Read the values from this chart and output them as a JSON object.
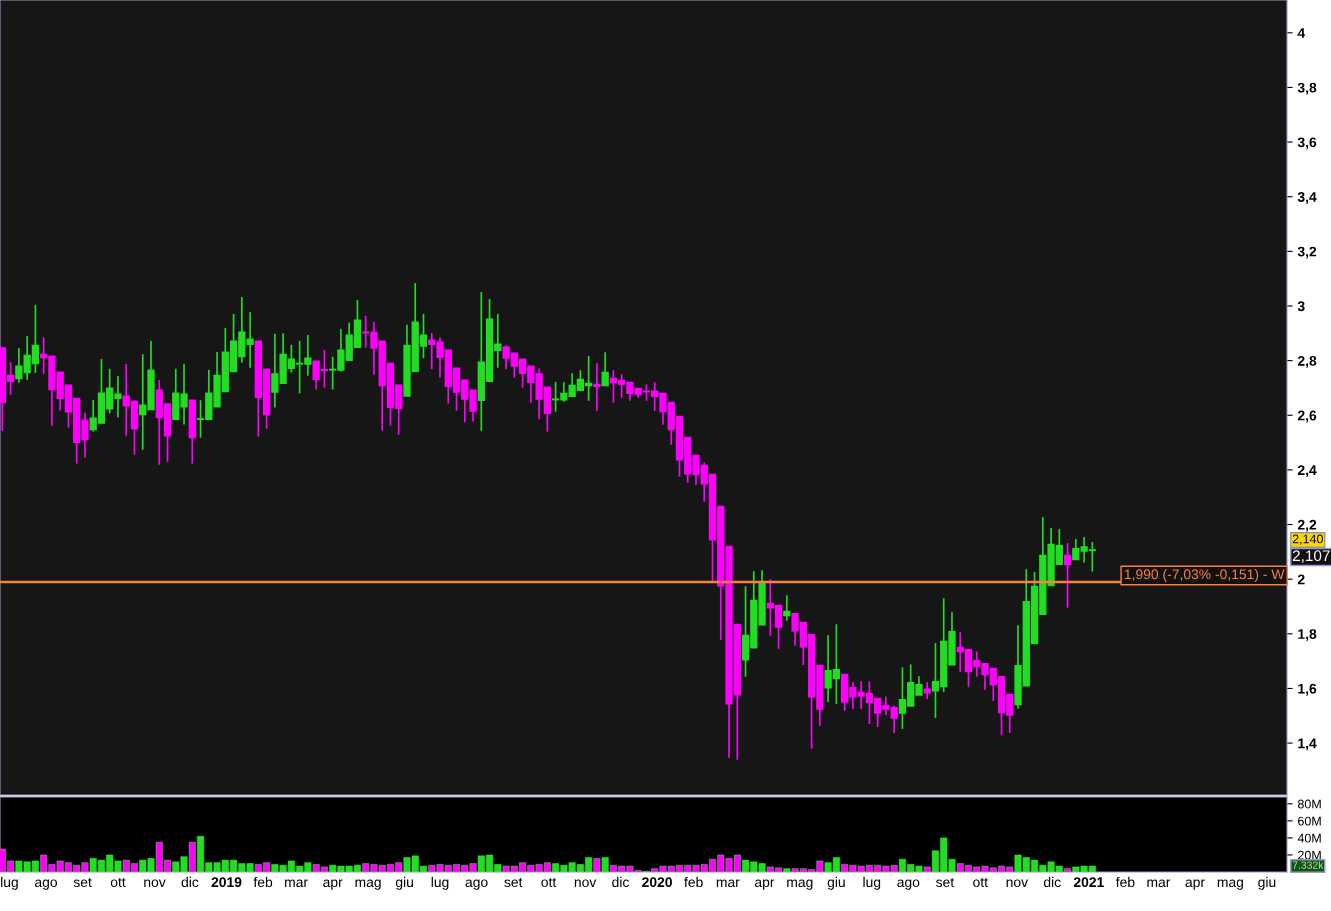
{
  "chart_data": [
    {
      "type": "candlestick",
      "tick_labels": "y",
      "grid": false,
      "legend": false,
      "x": [
        "2018-06-25",
        "2018-07-02",
        "2018-07-09",
        "2018-07-16",
        "2018-07-23",
        "2018-07-30",
        "2018-08-06",
        "2018-08-13",
        "2018-08-20",
        "2018-08-27",
        "2018-09-03",
        "2018-09-10",
        "2018-09-17",
        "2018-09-24",
        "2018-10-01",
        "2018-10-08",
        "2018-10-15",
        "2018-10-22",
        "2018-10-29",
        "2018-11-05",
        "2018-11-12",
        "2018-11-19",
        "2018-11-26",
        "2018-12-03",
        "2018-12-10",
        "2018-12-17",
        "2018-12-24",
        "2018-12-31",
        "2019-01-07",
        "2019-01-14",
        "2019-01-21",
        "2019-01-28",
        "2019-02-04",
        "2019-02-11",
        "2019-02-18",
        "2019-02-25",
        "2019-03-04",
        "2019-03-11",
        "2019-03-18",
        "2019-03-25",
        "2019-04-01",
        "2019-04-08",
        "2019-04-15",
        "2019-04-22",
        "2019-04-29",
        "2019-05-06",
        "2019-05-13",
        "2019-05-20",
        "2019-05-27",
        "2019-06-03",
        "2019-06-10",
        "2019-06-17",
        "2019-06-24",
        "2019-07-01",
        "2019-07-08",
        "2019-07-15",
        "2019-07-22",
        "2019-07-29",
        "2019-08-05",
        "2019-08-12",
        "2019-08-19",
        "2019-08-26",
        "2019-09-02",
        "2019-09-09",
        "2019-09-16",
        "2019-09-23",
        "2019-09-30",
        "2019-10-07",
        "2019-10-14",
        "2019-10-21",
        "2019-10-28",
        "2019-11-04",
        "2019-11-11",
        "2019-11-18",
        "2019-11-25",
        "2019-12-02",
        "2019-12-09",
        "2019-12-16",
        "2019-12-23",
        "2019-12-30",
        "2020-01-06",
        "2020-01-13",
        "2020-01-20",
        "2020-01-27",
        "2020-02-03",
        "2020-02-10",
        "2020-02-17",
        "2020-02-24",
        "2020-03-02",
        "2020-03-09",
        "2020-03-16",
        "2020-03-23",
        "2020-03-30",
        "2020-04-06",
        "2020-04-13",
        "2020-04-20",
        "2020-04-27",
        "2020-05-04",
        "2020-05-11",
        "2020-05-18",
        "2020-05-25",
        "2020-06-01",
        "2020-06-08",
        "2020-06-15",
        "2020-06-22",
        "2020-06-29",
        "2020-07-06",
        "2020-07-13",
        "2020-07-20",
        "2020-07-27",
        "2020-08-03",
        "2020-08-10",
        "2020-08-17",
        "2020-08-24",
        "2020-08-31",
        "2020-09-07",
        "2020-09-14",
        "2020-09-21",
        "2020-09-28",
        "2020-10-05",
        "2020-10-12",
        "2020-10-19",
        "2020-10-26",
        "2020-11-02",
        "2020-11-09",
        "2020-11-16",
        "2020-11-23",
        "2020-11-30",
        "2020-12-07",
        "2020-12-14",
        "2020-12-21",
        "2020-12-28",
        "2021-01-04"
      ],
      "ohlc": [
        [
          2.846,
          2.85,
          2.543,
          2.647
        ],
        [
          2.746,
          2.794,
          2.675,
          2.724
        ],
        [
          2.734,
          2.846,
          2.719,
          2.78
        ],
        [
          2.756,
          2.89,
          2.73,
          2.819
        ],
        [
          2.789,
          3.004,
          2.755,
          2.856
        ],
        [
          2.823,
          2.885,
          2.752,
          2.811
        ],
        [
          2.816,
          2.816,
          2.562,
          2.694
        ],
        [
          2.758,
          2.758,
          2.617,
          2.662
        ],
        [
          2.71,
          2.71,
          2.555,
          2.613
        ],
        [
          2.662,
          2.662,
          2.423,
          2.501
        ],
        [
          2.582,
          2.609,
          2.445,
          2.511
        ],
        [
          2.548,
          2.656,
          2.54,
          2.589
        ],
        [
          2.571,
          2.806,
          2.571,
          2.681
        ],
        [
          2.624,
          2.77,
          2.607,
          2.699
        ],
        [
          2.662,
          2.744,
          2.592,
          2.677
        ],
        [
          2.67,
          2.788,
          2.525,
          2.635
        ],
        [
          2.651,
          2.655,
          2.456,
          2.551
        ],
        [
          2.603,
          2.824,
          2.474,
          2.637
        ],
        [
          2.621,
          2.872,
          2.621,
          2.765
        ],
        [
          2.692,
          2.729,
          2.419,
          2.592
        ],
        [
          2.641,
          2.641,
          2.43,
          2.525
        ],
        [
          2.585,
          2.77,
          2.585,
          2.681
        ],
        [
          2.631,
          2.788,
          2.566,
          2.677
        ],
        [
          2.655,
          2.655,
          2.423,
          2.518
        ],
        [
          2.585,
          2.655,
          2.518,
          2.587
        ],
        [
          2.585,
          2.766,
          2.585,
          2.681
        ],
        [
          2.631,
          2.832,
          2.631,
          2.746
        ],
        [
          2.687,
          2.919,
          2.687,
          2.831
        ],
        [
          2.76,
          2.971,
          2.76,
          2.871
        ],
        [
          2.815,
          3.033,
          2.793,
          2.904
        ],
        [
          2.86,
          2.978,
          2.774,
          2.878
        ],
        [
          2.871,
          2.871,
          2.522,
          2.666
        ],
        [
          2.768,
          2.768,
          2.551,
          2.603
        ],
        [
          2.685,
          2.898,
          2.628,
          2.751
        ],
        [
          2.717,
          2.9,
          2.717,
          2.823
        ],
        [
          2.772,
          2.858,
          2.756,
          2.805
        ],
        [
          2.788,
          2.872,
          2.68,
          2.789
        ],
        [
          2.787,
          2.894,
          2.745,
          2.809
        ],
        [
          2.798,
          2.798,
          2.694,
          2.732
        ],
        [
          2.766,
          2.839,
          2.701,
          2.764
        ],
        [
          2.766,
          2.814,
          2.694,
          2.768
        ],
        [
          2.765,
          2.916,
          2.76,
          2.838
        ],
        [
          2.801,
          2.939,
          2.801,
          2.893
        ],
        [
          2.849,
          3.022,
          2.849,
          2.948
        ],
        [
          2.904,
          2.964,
          2.848,
          2.902
        ],
        [
          2.903,
          2.942,
          2.748,
          2.846
        ],
        [
          2.871,
          2.871,
          2.543,
          2.709
        ],
        [
          2.79,
          2.79,
          2.562,
          2.629
        ],
        [
          2.71,
          2.71,
          2.529,
          2.625
        ],
        [
          2.67,
          2.931,
          2.67,
          2.856
        ],
        [
          2.761,
          3.084,
          2.761,
          2.941
        ],
        [
          2.853,
          2.971,
          2.809,
          2.893
        ],
        [
          2.875,
          2.901,
          2.769,
          2.86
        ],
        [
          2.867,
          2.885,
          2.738,
          2.812
        ],
        [
          2.838,
          2.838,
          2.643,
          2.706
        ],
        [
          2.772,
          2.772,
          2.617,
          2.685
        ],
        [
          2.728,
          2.728,
          2.574,
          2.659
        ],
        [
          2.692,
          2.692,
          2.577,
          2.615
        ],
        [
          2.655,
          3.051,
          2.543,
          2.794
        ],
        [
          2.724,
          3.026,
          2.724,
          2.952
        ],
        [
          2.838,
          2.971,
          2.774,
          2.86
        ],
        [
          2.849,
          2.856,
          2.768,
          2.809
        ],
        [
          2.827,
          2.827,
          2.738,
          2.78
        ],
        [
          2.805,
          2.805,
          2.701,
          2.754
        ],
        [
          2.78,
          2.78,
          2.646,
          2.721
        ],
        [
          2.751,
          2.771,
          2.585,
          2.659
        ],
        [
          2.703,
          2.703,
          2.54,
          2.607
        ],
        [
          2.657,
          2.722,
          2.613,
          2.659
        ],
        [
          2.657,
          2.721,
          2.649,
          2.68
        ],
        [
          2.669,
          2.754,
          2.669,
          2.709
        ],
        [
          2.691,
          2.765,
          2.691,
          2.731
        ],
        [
          2.709,
          2.817,
          2.653,
          2.716
        ],
        [
          2.713,
          2.791,
          2.616,
          2.706
        ],
        [
          2.709,
          2.831,
          2.709,
          2.757
        ],
        [
          2.735,
          2.765,
          2.646,
          2.72
        ],
        [
          2.727,
          2.75,
          2.664,
          2.713
        ],
        [
          2.72,
          2.72,
          2.653,
          2.68
        ],
        [
          2.698,
          2.698,
          2.664,
          2.676
        ],
        [
          2.688,
          2.713,
          2.653,
          2.686
        ],
        [
          2.688,
          2.721,
          2.616,
          2.669
        ],
        [
          2.68,
          2.68,
          2.565,
          2.614
        ],
        [
          2.647,
          2.647,
          2.492,
          2.548
        ],
        [
          2.596,
          2.596,
          2.375,
          2.437
        ],
        [
          2.519,
          2.519,
          2.353,
          2.386
        ],
        [
          2.453,
          2.453,
          2.345,
          2.383
        ],
        [
          2.416,
          2.427,
          2.283,
          2.349
        ],
        [
          2.383,
          2.383,
          1.988,
          2.144
        ],
        [
          2.266,
          2.266,
          1.778,
          1.976
        ],
        [
          2.12,
          2.12,
          1.346,
          1.544
        ],
        [
          1.834,
          1.834,
          1.339,
          1.577
        ],
        [
          1.705,
          1.974,
          1.643,
          1.794
        ],
        [
          1.749,
          2.029,
          1.749,
          1.922
        ],
        [
          1.833,
          2.033,
          1.833,
          1.987
        ],
        [
          1.911,
          2.0,
          1.793,
          1.895
        ],
        [
          1.904,
          1.904,
          1.745,
          1.825
        ],
        [
          1.867,
          1.941,
          1.848,
          1.882
        ],
        [
          1.874,
          1.874,
          1.756,
          1.811
        ],
        [
          1.841,
          1.841,
          1.686,
          1.752
        ],
        [
          1.797,
          1.797,
          1.379,
          1.569
        ],
        [
          1.684,
          1.684,
          1.463,
          1.525
        ],
        [
          1.602,
          1.795,
          1.55,
          1.665
        ],
        [
          1.636,
          1.835,
          1.543,
          1.669
        ],
        [
          1.651,
          1.651,
          1.518,
          1.55
        ],
        [
          1.603,
          1.623,
          1.525,
          1.569
        ],
        [
          1.585,
          1.626,
          1.525,
          1.572
        ],
        [
          1.581,
          1.626,
          1.47,
          1.548
        ],
        [
          1.563,
          1.563,
          1.459,
          1.51
        ],
        [
          1.537,
          1.571,
          1.503,
          1.525
        ],
        [
          1.53,
          1.537,
          1.437,
          1.492
        ],
        [
          1.51,
          1.677,
          1.452,
          1.559
        ],
        [
          1.536,
          1.688,
          1.536,
          1.621
        ],
        [
          1.576,
          1.645,
          1.576,
          1.614
        ],
        [
          1.596,
          1.623,
          1.561,
          1.584
        ],
        [
          1.591,
          1.766,
          1.492,
          1.625
        ],
        [
          1.607,
          1.93,
          1.587,
          1.772
        ],
        [
          1.687,
          1.879,
          1.687,
          1.808
        ],
        [
          1.75,
          1.806,
          1.66,
          1.735
        ],
        [
          1.742,
          1.742,
          1.606,
          1.662
        ],
        [
          1.702,
          1.735,
          1.643,
          1.68
        ],
        [
          1.691,
          1.691,
          1.595,
          1.651
        ],
        [
          1.673,
          1.673,
          1.554,
          1.614
        ],
        [
          1.643,
          1.643,
          1.43,
          1.512
        ],
        [
          1.578,
          1.578,
          1.437,
          1.503
        ],
        [
          1.541,
          1.831,
          1.526,
          1.683
        ],
        [
          1.61,
          2.037,
          1.61,
          1.918
        ],
        [
          1.764,
          2.026,
          1.764,
          1.973
        ],
        [
          1.871,
          2.227,
          1.871,
          2.087
        ],
        [
          1.977,
          2.187,
          1.977,
          2.127
        ],
        [
          2.054,
          2.183,
          2.054,
          2.123
        ],
        [
          2.087,
          2.132,
          1.896,
          2.054
        ],
        [
          2.072,
          2.147,
          2.072,
          2.112
        ],
        [
          2.103,
          2.154,
          2.061,
          2.118
        ],
        [
          2.105,
          2.136,
          2.028,
          2.107
        ]
      ],
      "colors": [
        "#ff00ff",
        "#ff00ff",
        "#22dd22",
        "#22dd22",
        "#22dd22",
        "#ff00ff",
        "#ff00ff",
        "#ff00ff",
        "#ff00ff",
        "#ff00ff",
        "#ff00ff",
        "#22dd22",
        "#22dd22",
        "#22dd22",
        "#22dd22",
        "#ff00ff",
        "#ff00ff",
        "#22dd22",
        "#22dd22",
        "#ff00ff",
        "#ff00ff",
        "#22dd22",
        "#22dd22",
        "#ff00ff",
        "#22dd22",
        "#22dd22",
        "#22dd22",
        "#22dd22",
        "#22dd22",
        "#22dd22",
        "#22dd22",
        "#ff00ff",
        "#ff00ff",
        "#22dd22",
        "#22dd22",
        "#22dd22",
        "#22dd22",
        "#22dd22",
        "#ff00ff",
        "#ff00ff",
        "#22dd22",
        "#22dd22",
        "#22dd22",
        "#22dd22",
        "#ff00ff",
        "#ff00ff",
        "#ff00ff",
        "#ff00ff",
        "#ff00ff",
        "#22dd22",
        "#22dd22",
        "#22dd22",
        "#ff00ff",
        "#ff00ff",
        "#ff00ff",
        "#ff00ff",
        "#ff00ff",
        "#ff00ff",
        "#22dd22",
        "#22dd22",
        "#22dd22",
        "#ff00ff",
        "#ff00ff",
        "#ff00ff",
        "#ff00ff",
        "#ff00ff",
        "#ff00ff",
        "#22dd22",
        "#22dd22",
        "#22dd22",
        "#22dd22",
        "#22dd22",
        "#ff00ff",
        "#22dd22",
        "#ff00ff",
        "#ff00ff",
        "#ff00ff",
        "#ff00ff",
        "#ff00ff",
        "#ff00ff",
        "#ff00ff",
        "#ff00ff",
        "#ff00ff",
        "#ff00ff",
        "#ff00ff",
        "#ff00ff",
        "#ff00ff",
        "#ff00ff",
        "#ff00ff",
        "#ff00ff",
        "#22dd22",
        "#22dd22",
        "#22dd22",
        "#ff00ff",
        "#ff00ff",
        "#22dd22",
        "#ff00ff",
        "#ff00ff",
        "#ff00ff",
        "#ff00ff",
        "#22dd22",
        "#22dd22",
        "#ff00ff",
        "#ff00ff",
        "#ff00ff",
        "#ff00ff",
        "#ff00ff",
        "#ff00ff",
        "#ff00ff",
        "#22dd22",
        "#22dd22",
        "#22dd22",
        "#ff00ff",
        "#22dd22",
        "#22dd22",
        "#22dd22",
        "#ff00ff",
        "#ff00ff",
        "#ff00ff",
        "#ff00ff",
        "#ff00ff",
        "#ff00ff",
        "#ff00ff",
        "#22dd22",
        "#22dd22",
        "#22dd22",
        "#22dd22",
        "#22dd22",
        "#22dd22",
        "#ff00ff",
        "#22dd22",
        "#22dd22",
        "#22dd22"
      ],
      "xlim": [
        "2018-06-23",
        "2021-06-18"
      ],
      "ylim": [
        1.21,
        4.12
      ],
      "yticks": [
        {
          "value": 1.4,
          "label": "1,4"
        },
        {
          "value": 1.6,
          "label": "1,6"
        },
        {
          "value": 1.8,
          "label": "1,8"
        },
        2,
        {
          "value": 2.2,
          "label": "2,2"
        },
        {
          "value": 2.4,
          "label": "2,4"
        },
        {
          "value": 2.6,
          "label": "2,6"
        },
        {
          "value": 2.8,
          "label": "2,8"
        },
        3,
        {
          "value": 3.2,
          "label": "3,2"
        },
        {
          "value": 3.4,
          "label": "3,4"
        },
        {
          "value": 3.6,
          "label": "3,6"
        },
        {
          "value": 3.8,
          "label": "3,8"
        },
        4
      ],
      "ref_lines": [
        {
          "axis": "y",
          "value": 1.99,
          "label": "1,990 (-7,03% -0,151) - W",
          "color": "#ff7f3f"
        }
      ],
      "annotations": [
        "2,140",
        "2,107"
      ]
    },
    {
      "type": "bar",
      "grid": false,
      "legend": false,
      "x": [
        "2018-06-25",
        "2018-07-02",
        "2018-07-09",
        "2018-07-16",
        "2018-07-23",
        "2018-07-30",
        "2018-08-06",
        "2018-08-13",
        "2018-08-20",
        "2018-08-27",
        "2018-09-03",
        "2018-09-10",
        "2018-09-17",
        "2018-09-24",
        "2018-10-01",
        "2018-10-08",
        "2018-10-15",
        "2018-10-22",
        "2018-10-29",
        "2018-11-05",
        "2018-11-12",
        "2018-11-19",
        "2018-11-26",
        "2018-12-03",
        "2018-12-10",
        "2018-12-17",
        "2018-12-24",
        "2018-12-31",
        "2019-01-07",
        "2019-01-14",
        "2019-01-21",
        "2019-01-28",
        "2019-02-04",
        "2019-02-11",
        "2019-02-18",
        "2019-02-25",
        "2019-03-04",
        "2019-03-11",
        "2019-03-18",
        "2019-03-25",
        "2019-04-01",
        "2019-04-08",
        "2019-04-15",
        "2019-04-22",
        "2019-04-29",
        "2019-05-06",
        "2019-05-13",
        "2019-05-20",
        "2019-05-27",
        "2019-06-03",
        "2019-06-10",
        "2019-06-17",
        "2019-06-24",
        "2019-07-01",
        "2019-07-08",
        "2019-07-15",
        "2019-07-22",
        "2019-07-29",
        "2019-08-05",
        "2019-08-12",
        "2019-08-19",
        "2019-08-26",
        "2019-09-02",
        "2019-09-09",
        "2019-09-16",
        "2019-09-23",
        "2019-09-30",
        "2019-10-07",
        "2019-10-14",
        "2019-10-21",
        "2019-10-28",
        "2019-11-04",
        "2019-11-11",
        "2019-11-18",
        "2019-11-25",
        "2019-12-02",
        "2019-12-09",
        "2019-12-16",
        "2019-12-23",
        "2019-12-30",
        "2020-01-06",
        "2020-01-13",
        "2020-01-20",
        "2020-01-27",
        "2020-02-03",
        "2020-02-10",
        "2020-02-17",
        "2020-02-24",
        "2020-03-02",
        "2020-03-09",
        "2020-03-16",
        "2020-03-23",
        "2020-03-30",
        "2020-04-06",
        "2020-04-13",
        "2020-04-20",
        "2020-04-27",
        "2020-05-04",
        "2020-05-11",
        "2020-05-18",
        "2020-05-25",
        "2020-06-01",
        "2020-06-08",
        "2020-06-15",
        "2020-06-22",
        "2020-06-29",
        "2020-07-06",
        "2020-07-13",
        "2020-07-20",
        "2020-07-27",
        "2020-08-03",
        "2020-08-10",
        "2020-08-17",
        "2020-08-24",
        "2020-08-31",
        "2020-09-07",
        "2020-09-14",
        "2020-09-21",
        "2020-09-28",
        "2020-10-05",
        "2020-10-12",
        "2020-10-19",
        "2020-10-26",
        "2020-11-02",
        "2020-11-09",
        "2020-11-16",
        "2020-11-23",
        "2020-11-30",
        "2020-12-07",
        "2020-12-14",
        "2020-12-21",
        "2020-12-28",
        "2021-01-04"
      ],
      "values": [
        27,
        13,
        13,
        12,
        13,
        20,
        9,
        13,
        11,
        8,
        11,
        16,
        14,
        20,
        13,
        14,
        10,
        14,
        16,
        35,
        14,
        12,
        18,
        35,
        42,
        11,
        11,
        14,
        14,
        10,
        10,
        9,
        11,
        9,
        8,
        13,
        7,
        11,
        9,
        6,
        8,
        7,
        7,
        8,
        10,
        9,
        8,
        9,
        11,
        17,
        19,
        7,
        8,
        9,
        8,
        9,
        8,
        10,
        19,
        20,
        9,
        7,
        7,
        11,
        8,
        9,
        11,
        10,
        8,
        11,
        9,
        17,
        16,
        17,
        8,
        7,
        7,
        2,
        1,
        4,
        7,
        7,
        8,
        8,
        8,
        9,
        15,
        20,
        16,
        20,
        14,
        12,
        10,
        6,
        5,
        4,
        4,
        4,
        3,
        13,
        11,
        17,
        9,
        8,
        7,
        8,
        8,
        7,
        8,
        15,
        9,
        7,
        6,
        25,
        40,
        15,
        10,
        8,
        6,
        7,
        5,
        7,
        6,
        20,
        17,
        14,
        8,
        12,
        7,
        4,
        6,
        7,
        7
      ],
      "colors": [
        "#ff00ff",
        "#ff00ff",
        "#22dd22",
        "#22dd22",
        "#22dd22",
        "#ff00ff",
        "#ff00ff",
        "#ff00ff",
        "#ff00ff",
        "#ff00ff",
        "#ff00ff",
        "#22dd22",
        "#22dd22",
        "#22dd22",
        "#22dd22",
        "#ff00ff",
        "#ff00ff",
        "#22dd22",
        "#22dd22",
        "#ff00ff",
        "#ff00ff",
        "#22dd22",
        "#22dd22",
        "#ff00ff",
        "#22dd22",
        "#22dd22",
        "#22dd22",
        "#22dd22",
        "#22dd22",
        "#22dd22",
        "#22dd22",
        "#ff00ff",
        "#ff00ff",
        "#22dd22",
        "#22dd22",
        "#22dd22",
        "#22dd22",
        "#22dd22",
        "#ff00ff",
        "#ff00ff",
        "#22dd22",
        "#22dd22",
        "#22dd22",
        "#22dd22",
        "#ff00ff",
        "#ff00ff",
        "#ff00ff",
        "#ff00ff",
        "#ff00ff",
        "#22dd22",
        "#22dd22",
        "#22dd22",
        "#ff00ff",
        "#ff00ff",
        "#ff00ff",
        "#ff00ff",
        "#ff00ff",
        "#ff00ff",
        "#22dd22",
        "#22dd22",
        "#22dd22",
        "#ff00ff",
        "#ff00ff",
        "#ff00ff",
        "#ff00ff",
        "#ff00ff",
        "#ff00ff",
        "#22dd22",
        "#22dd22",
        "#22dd22",
        "#22dd22",
        "#22dd22",
        "#ff00ff",
        "#22dd22",
        "#ff00ff",
        "#ff00ff",
        "#ff00ff",
        "#ff00ff",
        "#ff00ff",
        "#ff00ff",
        "#ff00ff",
        "#ff00ff",
        "#ff00ff",
        "#ff00ff",
        "#ff00ff",
        "#ff00ff",
        "#ff00ff",
        "#ff00ff",
        "#ff00ff",
        "#ff00ff",
        "#22dd22",
        "#22dd22",
        "#22dd22",
        "#ff00ff",
        "#ff00ff",
        "#22dd22",
        "#ff00ff",
        "#ff00ff",
        "#ff00ff",
        "#ff00ff",
        "#22dd22",
        "#22dd22",
        "#ff00ff",
        "#ff00ff",
        "#ff00ff",
        "#ff00ff",
        "#ff00ff",
        "#ff00ff",
        "#ff00ff",
        "#22dd22",
        "#22dd22",
        "#22dd22",
        "#ff00ff",
        "#22dd22",
        "#22dd22",
        "#22dd22",
        "#ff00ff",
        "#ff00ff",
        "#ff00ff",
        "#ff00ff",
        "#ff00ff",
        "#ff00ff",
        "#ff00ff",
        "#22dd22",
        "#22dd22",
        "#22dd22",
        "#22dd22",
        "#22dd22",
        "#22dd22",
        "#ff00ff",
        "#22dd22",
        "#22dd22",
        "#22dd22"
      ],
      "xlim": [
        "2018-06-23",
        "2021-06-18"
      ],
      "xticks": [
        {
          "value": "2018-07-01",
          "label": "lug"
        },
        {
          "value": "2018-08-01",
          "label": "ago"
        },
        {
          "value": "2018-09-01",
          "label": "set"
        },
        {
          "value": "2018-10-01",
          "label": "ott"
        },
        {
          "value": "2018-11-01",
          "label": "nov"
        },
        {
          "value": "2018-12-01",
          "label": "dic"
        },
        {
          "value": "2019-01-01",
          "label": "2019"
        },
        {
          "value": "2019-02-01",
          "label": "feb"
        },
        {
          "value": "2019-03-01",
          "label": "mar"
        },
        {
          "value": "2019-04-01",
          "label": "apr"
        },
        {
          "value": "2019-05-01",
          "label": "mag"
        },
        {
          "value": "2019-06-01",
          "label": "giu"
        },
        {
          "value": "2019-07-01",
          "label": "lug"
        },
        {
          "value": "2019-08-01",
          "label": "ago"
        },
        {
          "value": "2019-09-01",
          "label": "set"
        },
        {
          "value": "2019-10-01",
          "label": "ott"
        },
        {
          "value": "2019-11-01",
          "label": "nov"
        },
        {
          "value": "2019-12-01",
          "label": "dic"
        },
        {
          "value": "2020-01-01",
          "label": "2020"
        },
        {
          "value": "2020-02-01",
          "label": "feb"
        },
        {
          "value": "2020-03-01",
          "label": "mar"
        },
        {
          "value": "2020-04-01",
          "label": "apr"
        },
        {
          "value": "2020-05-01",
          "label": "mag"
        },
        {
          "value": "2020-06-01",
          "label": "giu"
        },
        {
          "value": "2020-07-01",
          "label": "lug"
        },
        {
          "value": "2020-08-01",
          "label": "ago"
        },
        {
          "value": "2020-09-01",
          "label": "set"
        },
        {
          "value": "2020-10-01",
          "label": "ott"
        },
        {
          "value": "2020-11-01",
          "label": "nov"
        },
        {
          "value": "2020-12-01",
          "label": "dic"
        },
        {
          "value": "2021-01-01",
          "label": "2021"
        },
        {
          "value": "2021-02-01",
          "label": "feb"
        },
        {
          "value": "2021-03-01",
          "label": "mar"
        },
        {
          "value": "2021-04-01",
          "label": "apr"
        },
        {
          "value": "2021-05-01",
          "label": "mag"
        },
        {
          "value": "2021-06-01",
          "label": "giu"
        }
      ],
      "ylim": [
        0,
        88
      ],
      "yticks": [
        {
          "value": 20,
          "label": "20M"
        },
        {
          "value": 40,
          "label": "40M"
        },
        {
          "value": 60,
          "label": "60M"
        },
        {
          "value": 80,
          "label": "80M"
        }
      ],
      "annotations": [
        "7.332k"
      ]
    }
  ]
}
